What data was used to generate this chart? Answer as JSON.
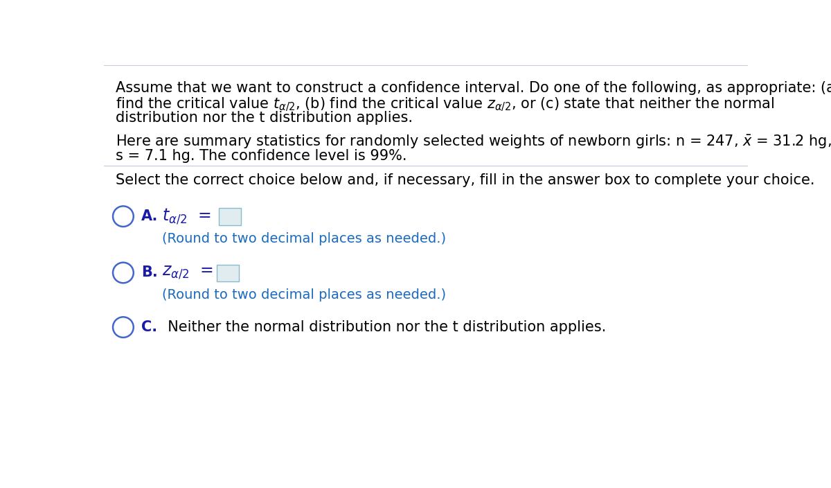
{
  "bg_color": "#ffffff",
  "text_color": "#000000",
  "blue_dark": "#1a1aaa",
  "blue_choice": "#2222cc",
  "blue_hint": "#1a6abf",
  "circle_color": "#4466cc",
  "separator_color": "#ccccdd",
  "box_edge_color": "#88bbcc",
  "box_face_color": "#e0ecf0",
  "paragraph1_line1": "Assume that we want to construct a confidence interval. Do one of the following, as appropriate: (a)",
  "paragraph1_line2": "find the critical value $t_{\\alpha/2}$, (b) find the critical value $z_{\\alpha/2}$, or (c) state that neither the normal",
  "paragraph1_line3": "distribution nor the t distribution applies.",
  "paragraph2_line1": "Here are summary statistics for randomly selected weights of newborn girls: n = 247, $\\bar{x}$ = 31.2 hg,",
  "paragraph2_line2": "s = 7.1 hg. The confidence level is 99%.",
  "instruction": "Select the correct choice below and, if necessary, fill in the answer box to complete your choice.",
  "choice_A_label": "A.",
  "choice_A_formula": "$t_{\\alpha/2}$  =",
  "choice_A_hint": "(Round to two decimal places as needed.)",
  "choice_B_label": "B.",
  "choice_B_formula": "$z_{\\alpha/2}$  =",
  "choice_B_hint": "(Round to two decimal places as needed.)",
  "choice_C_label": "C.",
  "choice_C_text": "  Neither the normal distribution nor the t distribution applies.",
  "fs_main": 15.0,
  "fs_choice_label": 15.0,
  "fs_hint": 14.0
}
